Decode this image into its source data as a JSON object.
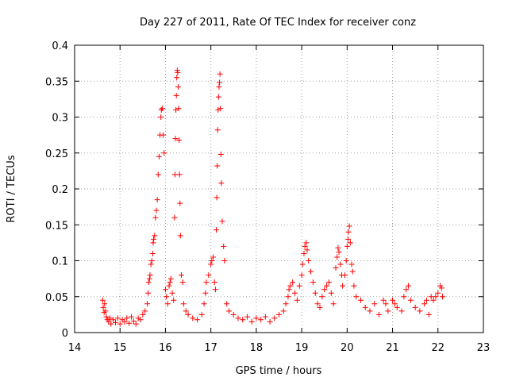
{
  "chart_data": {
    "type": "scatter",
    "title": "Day 227 of 2011, Rate Of TEC Index for receiver conz",
    "xlabel": "GPS time / hours",
    "ylabel": "ROTI / TECUs",
    "xlim": [
      14,
      23
    ],
    "ylim": [
      0,
      0.4
    ],
    "xticks": [
      14,
      15,
      16,
      17,
      18,
      19,
      20,
      21,
      22,
      23
    ],
    "yticks": [
      0,
      0.05,
      0.1,
      0.15,
      0.2,
      0.25,
      0.3,
      0.35,
      0.4
    ],
    "xtick_labels": [
      "14",
      "15",
      "16",
      "17",
      "18",
      "19",
      "20",
      "21",
      "22",
      "23"
    ],
    "ytick_labels": [
      "0",
      "0.05",
      "0.1",
      "0.15",
      "0.2",
      "0.25",
      "0.3",
      "0.35",
      "0.4"
    ],
    "grid": true,
    "marker": "plus",
    "color": "#ff0000",
    "points": [
      [
        14.62,
        0.045
      ],
      [
        14.63,
        0.035
      ],
      [
        14.65,
        0.028
      ],
      [
        14.66,
        0.04
      ],
      [
        14.68,
        0.03
      ],
      [
        14.7,
        0.022
      ],
      [
        14.72,
        0.018
      ],
      [
        14.75,
        0.015
      ],
      [
        14.78,
        0.02
      ],
      [
        14.8,
        0.012
      ],
      [
        14.85,
        0.018
      ],
      [
        14.9,
        0.014
      ],
      [
        14.95,
        0.02
      ],
      [
        15.0,
        0.012
      ],
      [
        15.05,
        0.018
      ],
      [
        15.1,
        0.015
      ],
      [
        15.15,
        0.02
      ],
      [
        15.2,
        0.013
      ],
      [
        15.25,
        0.022
      ],
      [
        15.3,
        0.016
      ],
      [
        15.35,
        0.012
      ],
      [
        15.4,
        0.02
      ],
      [
        15.45,
        0.018
      ],
      [
        15.5,
        0.025
      ],
      [
        15.55,
        0.03
      ],
      [
        15.6,
        0.04
      ],
      [
        15.62,
        0.055
      ],
      [
        15.63,
        0.07
      ],
      [
        15.65,
        0.075
      ],
      [
        15.66,
        0.08
      ],
      [
        15.68,
        0.095
      ],
      [
        15.7,
        0.1
      ],
      [
        15.72,
        0.11
      ],
      [
        15.73,
        0.125
      ],
      [
        15.74,
        0.13
      ],
      [
        15.76,
        0.135
      ],
      [
        15.78,
        0.16
      ],
      [
        15.8,
        0.17
      ],
      [
        15.82,
        0.185
      ],
      [
        15.84,
        0.22
      ],
      [
        15.86,
        0.245
      ],
      [
        15.88,
        0.275
      ],
      [
        15.9,
        0.3
      ],
      [
        15.91,
        0.31
      ],
      [
        15.93,
        0.312
      ],
      [
        15.95,
        0.275
      ],
      [
        15.97,
        0.25
      ],
      [
        16.0,
        0.06
      ],
      [
        16.02,
        0.05
      ],
      [
        16.05,
        0.04
      ],
      [
        16.08,
        0.065
      ],
      [
        16.1,
        0.07
      ],
      [
        16.12,
        0.075
      ],
      [
        16.15,
        0.055
      ],
      [
        16.18,
        0.045
      ],
      [
        16.2,
        0.16
      ],
      [
        16.21,
        0.22
      ],
      [
        16.22,
        0.27
      ],
      [
        16.23,
        0.31
      ],
      [
        16.24,
        0.33
      ],
      [
        16.25,
        0.355
      ],
      [
        16.26,
        0.365
      ],
      [
        16.27,
        0.362
      ],
      [
        16.28,
        0.342
      ],
      [
        16.29,
        0.312
      ],
      [
        16.3,
        0.268
      ],
      [
        16.31,
        0.22
      ],
      [
        16.32,
        0.18
      ],
      [
        16.33,
        0.135
      ],
      [
        16.35,
        0.08
      ],
      [
        16.38,
        0.07
      ],
      [
        16.4,
        0.04
      ],
      [
        16.45,
        0.03
      ],
      [
        16.5,
        0.025
      ],
      [
        16.6,
        0.02
      ],
      [
        16.7,
        0.018
      ],
      [
        16.8,
        0.025
      ],
      [
        16.85,
        0.04
      ],
      [
        16.88,
        0.055
      ],
      [
        16.9,
        0.07
      ],
      [
        16.95,
        0.08
      ],
      [
        17.0,
        0.095
      ],
      [
        17.02,
        0.1
      ],
      [
        17.05,
        0.105
      ],
      [
        17.08,
        0.07
      ],
      [
        17.1,
        0.06
      ],
      [
        17.12,
        0.143
      ],
      [
        17.13,
        0.188
      ],
      [
        17.14,
        0.232
      ],
      [
        17.15,
        0.282
      ],
      [
        17.16,
        0.31
      ],
      [
        17.17,
        0.328
      ],
      [
        17.18,
        0.342
      ],
      [
        17.19,
        0.348
      ],
      [
        17.2,
        0.36
      ],
      [
        17.21,
        0.312
      ],
      [
        17.22,
        0.248
      ],
      [
        17.23,
        0.208
      ],
      [
        17.25,
        0.155
      ],
      [
        17.28,
        0.12
      ],
      [
        17.3,
        0.1
      ],
      [
        17.35,
        0.04
      ],
      [
        17.4,
        0.03
      ],
      [
        17.5,
        0.025
      ],
      [
        17.6,
        0.02
      ],
      [
        17.7,
        0.018
      ],
      [
        17.8,
        0.022
      ],
      [
        17.9,
        0.015
      ],
      [
        18.0,
        0.02
      ],
      [
        18.1,
        0.018
      ],
      [
        18.2,
        0.022
      ],
      [
        18.3,
        0.015
      ],
      [
        18.4,
        0.02
      ],
      [
        18.5,
        0.025
      ],
      [
        18.6,
        0.03
      ],
      [
        18.65,
        0.04
      ],
      [
        18.7,
        0.05
      ],
      [
        18.72,
        0.06
      ],
      [
        18.75,
        0.065
      ],
      [
        18.8,
        0.07
      ],
      [
        18.85,
        0.055
      ],
      [
        18.9,
        0.045
      ],
      [
        18.95,
        0.065
      ],
      [
        19.0,
        0.08
      ],
      [
        19.02,
        0.095
      ],
      [
        19.05,
        0.11
      ],
      [
        19.07,
        0.12
      ],
      [
        19.1,
        0.125
      ],
      [
        19.12,
        0.115
      ],
      [
        19.15,
        0.1
      ],
      [
        19.2,
        0.085
      ],
      [
        19.25,
        0.07
      ],
      [
        19.3,
        0.055
      ],
      [
        19.35,
        0.04
      ],
      [
        19.4,
        0.035
      ],
      [
        19.45,
        0.05
      ],
      [
        19.5,
        0.06
      ],
      [
        19.55,
        0.065
      ],
      [
        19.6,
        0.07
      ],
      [
        19.65,
        0.055
      ],
      [
        19.7,
        0.04
      ],
      [
        19.75,
        0.09
      ],
      [
        19.78,
        0.105
      ],
      [
        19.8,
        0.118
      ],
      [
        19.82,
        0.112
      ],
      [
        19.85,
        0.095
      ],
      [
        19.88,
        0.08
      ],
      [
        19.9,
        0.065
      ],
      [
        19.95,
        0.08
      ],
      [
        19.98,
        0.1
      ],
      [
        20.0,
        0.12
      ],
      [
        20.02,
        0.13
      ],
      [
        20.03,
        0.14
      ],
      [
        20.05,
        0.148
      ],
      [
        20.07,
        0.125
      ],
      [
        20.1,
        0.095
      ],
      [
        20.12,
        0.085
      ],
      [
        20.15,
        0.065
      ],
      [
        20.2,
        0.05
      ],
      [
        20.3,
        0.045
      ],
      [
        20.4,
        0.035
      ],
      [
        20.5,
        0.03
      ],
      [
        20.6,
        0.04
      ],
      [
        20.7,
        0.025
      ],
      [
        20.8,
        0.045
      ],
      [
        20.85,
        0.04
      ],
      [
        20.9,
        0.03
      ],
      [
        21.0,
        0.045
      ],
      [
        21.05,
        0.04
      ],
      [
        21.1,
        0.035
      ],
      [
        21.2,
        0.03
      ],
      [
        21.25,
        0.05
      ],
      [
        21.3,
        0.06
      ],
      [
        21.35,
        0.065
      ],
      [
        21.4,
        0.045
      ],
      [
        21.5,
        0.035
      ],
      [
        21.6,
        0.03
      ],
      [
        21.7,
        0.04
      ],
      [
        21.75,
        0.045
      ],
      [
        21.8,
        0.025
      ],
      [
        21.85,
        0.05
      ],
      [
        21.9,
        0.045
      ],
      [
        21.95,
        0.05
      ],
      [
        22.0,
        0.055
      ],
      [
        22.05,
        0.065
      ],
      [
        22.08,
        0.062
      ],
      [
        22.1,
        0.05
      ]
    ]
  }
}
